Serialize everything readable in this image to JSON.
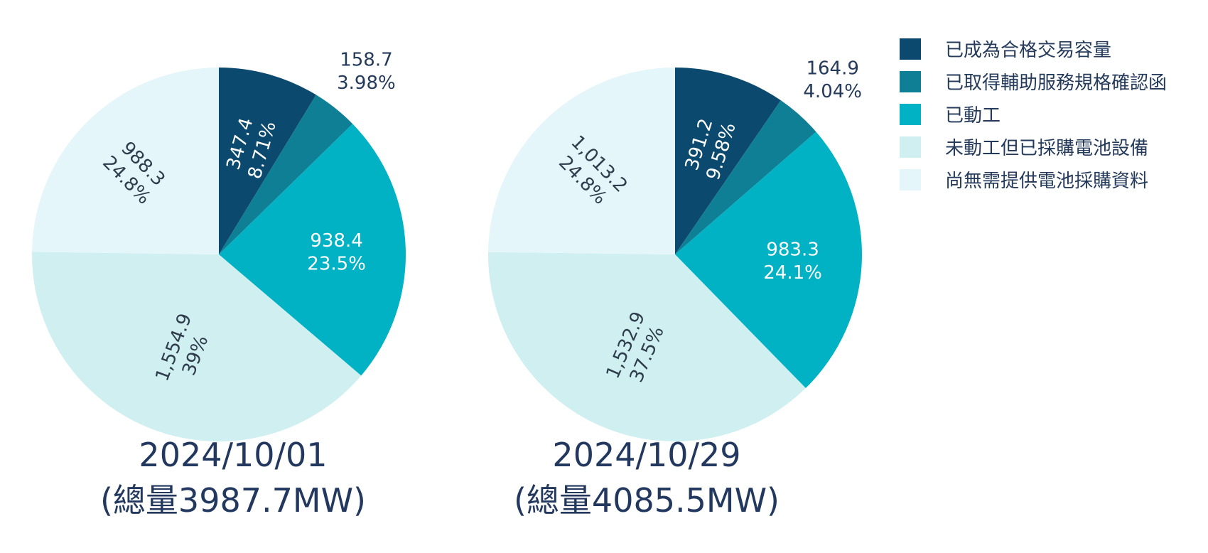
{
  "legend": [
    {
      "label": "已成為合格交易容量",
      "color": "#0b4a6e"
    },
    {
      "label": "已取得輔助服務規格確認函",
      "color": "#0f7f95"
    },
    {
      "label": "已動工",
      "color": "#00b2c4"
    },
    {
      "label": "未動工但已採購電池設備",
      "color": "#cfeff1"
    },
    {
      "label": "尚無需提供電池採購資料",
      "color": "#e5f6fa"
    }
  ],
  "chart_data": [
    {
      "type": "pie",
      "title": "2024/10/01",
      "subtitle": "(總量3987.7MW)",
      "slices": [
        {
          "name": "已成為合格交易容量",
          "value": 347.4,
          "value_label": "347.4",
          "percent_label": "8.71%"
        },
        {
          "name": "已取得輔助服務規格確認函",
          "value": 158.7,
          "value_label": "158.7",
          "percent_label": "3.98%"
        },
        {
          "name": "已動工",
          "value": 938.4,
          "value_label": "938.4",
          "percent_label": "23.5%"
        },
        {
          "name": "未動工但已採購電池設備",
          "value": 1554.9,
          "value_label": "1,554.9",
          "percent_label": "39%"
        },
        {
          "name": "尚無需提供電池採購資料",
          "value": 988.3,
          "value_label": "988.3",
          "percent_label": "24.8%"
        }
      ]
    },
    {
      "type": "pie",
      "title": "2024/10/29",
      "subtitle": "(總量4085.5MW)",
      "slices": [
        {
          "name": "已成為合格交易容量",
          "value": 391.2,
          "value_label": "391.2",
          "percent_label": "9.58%"
        },
        {
          "name": "已取得輔助服務規格確認函",
          "value": 164.9,
          "value_label": "164.9",
          "percent_label": "4.04%"
        },
        {
          "name": "已動工",
          "value": 983.3,
          "value_label": "983.3",
          "percent_label": "24.1%"
        },
        {
          "name": "未動工但已採購電池設備",
          "value": 1532.9,
          "value_label": "1,532.9",
          "percent_label": "37.5%"
        },
        {
          "name": "尚無需提供電池採購資料",
          "value": 1013.2,
          "value_label": "1,013.2",
          "percent_label": "24.8%"
        }
      ]
    }
  ]
}
